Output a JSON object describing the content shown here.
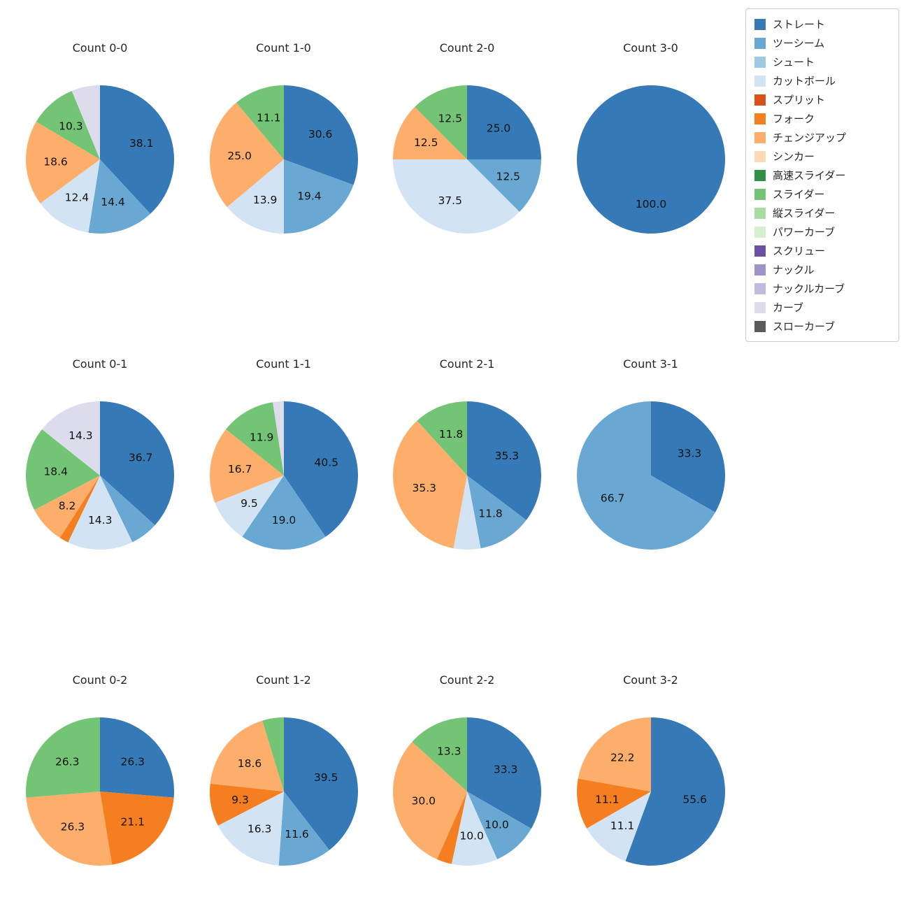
{
  "palette": {
    "ストレート": "#3579b6",
    "ツーシーム": "#68a8d2",
    "シュート": "#9ecae1",
    "カットボール": "#d2e3f3",
    "スプリット": "#d8511d",
    "フォーク": "#f57e20",
    "チェンジアップ": "#fdae6b",
    "シンカー": "#fdd9b4",
    "高速スライダー": "#2e9147",
    "スライダー": "#74c476",
    "縦スライダー": "#a8dca3",
    "パワーカーブ": "#d7efd1",
    "スクリュー": "#6a51a3",
    "ナックル": "#9e94c8",
    "ナックルカーブ": "#bdbcdc",
    "カーブ": "#dcdcec",
    "スローカーブ": "#5a5a5a"
  },
  "legend": {
    "items": [
      "ストレート",
      "ツーシーム",
      "シュート",
      "カットボール",
      "スプリット",
      "フォーク",
      "チェンジアップ",
      "シンカー",
      "高速スライダー",
      "スライダー",
      "縦スライダー",
      "パワーカーブ",
      "スクリュー",
      "ナックル",
      "ナックルカーブ",
      "カーブ",
      "スローカーブ"
    ]
  },
  "chart_data": [
    {
      "type": "pie",
      "title": "Count 0-0",
      "slices": [
        {
          "label": "ストレート",
          "value": 38.1,
          "labeled": true
        },
        {
          "label": "ツーシーム",
          "value": 14.4,
          "labeled": true
        },
        {
          "label": "カットボール",
          "value": 12.4,
          "labeled": true
        },
        {
          "label": "チェンジアップ",
          "value": 18.6,
          "labeled": true
        },
        {
          "label": "スライダー",
          "value": 10.3,
          "labeled": true
        },
        {
          "label": "カーブ",
          "value": 6.2,
          "labeled": false
        }
      ]
    },
    {
      "type": "pie",
      "title": "Count 1-0",
      "slices": [
        {
          "label": "ストレート",
          "value": 30.6,
          "labeled": true
        },
        {
          "label": "ツーシーム",
          "value": 19.4,
          "labeled": true
        },
        {
          "label": "カットボール",
          "value": 13.9,
          "labeled": true
        },
        {
          "label": "チェンジアップ",
          "value": 25.0,
          "labeled": true
        },
        {
          "label": "スライダー",
          "value": 11.1,
          "labeled": true
        }
      ]
    },
    {
      "type": "pie",
      "title": "Count 2-0",
      "slices": [
        {
          "label": "ストレート",
          "value": 25.0,
          "labeled": true
        },
        {
          "label": "ツーシーム",
          "value": 12.5,
          "labeled": true
        },
        {
          "label": "カットボール",
          "value": 37.5,
          "labeled": true
        },
        {
          "label": "チェンジアップ",
          "value": 12.5,
          "labeled": true
        },
        {
          "label": "スライダー",
          "value": 12.5,
          "labeled": true
        }
      ]
    },
    {
      "type": "pie",
      "title": "Count 3-0",
      "slices": [
        {
          "label": "ストレート",
          "value": 100.0,
          "labeled": true
        }
      ]
    },
    {
      "type": "pie",
      "title": "Count 0-1",
      "slices": [
        {
          "label": "ストレート",
          "value": 36.7,
          "labeled": true
        },
        {
          "label": "ツーシーム",
          "value": 6.1,
          "labeled": false
        },
        {
          "label": "カットボール",
          "value": 14.3,
          "labeled": true
        },
        {
          "label": "フォーク",
          "value": 2.0,
          "labeled": false
        },
        {
          "label": "チェンジアップ",
          "value": 8.2,
          "labeled": true
        },
        {
          "label": "スライダー",
          "value": 18.4,
          "labeled": true
        },
        {
          "label": "カーブ",
          "value": 14.3,
          "labeled": true
        }
      ]
    },
    {
      "type": "pie",
      "title": "Count 1-1",
      "slices": [
        {
          "label": "ストレート",
          "value": 40.5,
          "labeled": true
        },
        {
          "label": "ツーシーム",
          "value": 19.0,
          "labeled": true
        },
        {
          "label": "カットボール",
          "value": 9.5,
          "labeled": true
        },
        {
          "label": "チェンジアップ",
          "value": 16.7,
          "labeled": true
        },
        {
          "label": "スライダー",
          "value": 11.9,
          "labeled": true
        },
        {
          "label": "カーブ",
          "value": 2.4,
          "labeled": false
        }
      ]
    },
    {
      "type": "pie",
      "title": "Count 2-1",
      "slices": [
        {
          "label": "ストレート",
          "value": 35.3,
          "labeled": true
        },
        {
          "label": "ツーシーム",
          "value": 11.8,
          "labeled": true
        },
        {
          "label": "カットボール",
          "value": 5.9,
          "labeled": false
        },
        {
          "label": "チェンジアップ",
          "value": 35.3,
          "labeled": true
        },
        {
          "label": "スライダー",
          "value": 11.8,
          "labeled": true
        }
      ]
    },
    {
      "type": "pie",
      "title": "Count 3-1",
      "slices": [
        {
          "label": "ストレート",
          "value": 33.3,
          "labeled": true
        },
        {
          "label": "ツーシーム",
          "value": 66.7,
          "labeled": true
        }
      ]
    },
    {
      "type": "pie",
      "title": "Count 0-2",
      "slices": [
        {
          "label": "ストレート",
          "value": 26.3,
          "labeled": true
        },
        {
          "label": "フォーク",
          "value": 21.1,
          "labeled": true
        },
        {
          "label": "チェンジアップ",
          "value": 26.3,
          "labeled": true
        },
        {
          "label": "スライダー",
          "value": 26.3,
          "labeled": true
        }
      ]
    },
    {
      "type": "pie",
      "title": "Count 1-2",
      "slices": [
        {
          "label": "ストレート",
          "value": 39.5,
          "labeled": true
        },
        {
          "label": "ツーシーム",
          "value": 11.6,
          "labeled": true
        },
        {
          "label": "カットボール",
          "value": 16.3,
          "labeled": true
        },
        {
          "label": "フォーク",
          "value": 9.3,
          "labeled": true
        },
        {
          "label": "チェンジアップ",
          "value": 18.6,
          "labeled": true
        },
        {
          "label": "スライダー",
          "value": 4.7,
          "labeled": false
        }
      ]
    },
    {
      "type": "pie",
      "title": "Count 2-2",
      "slices": [
        {
          "label": "ストレート",
          "value": 33.3,
          "labeled": true
        },
        {
          "label": "ツーシーム",
          "value": 10.0,
          "labeled": true
        },
        {
          "label": "カットボール",
          "value": 10.0,
          "labeled": true
        },
        {
          "label": "フォーク",
          "value": 3.3,
          "labeled": false
        },
        {
          "label": "チェンジアップ",
          "value": 30.0,
          "labeled": true
        },
        {
          "label": "スライダー",
          "value": 13.3,
          "labeled": true
        }
      ]
    },
    {
      "type": "pie",
      "title": "Count 3-2",
      "slices": [
        {
          "label": "ストレート",
          "value": 55.6,
          "labeled": true
        },
        {
          "label": "カットボール",
          "value": 11.1,
          "labeled": true
        },
        {
          "label": "フォーク",
          "value": 11.1,
          "labeled": true
        },
        {
          "label": "チェンジアップ",
          "value": 22.2,
          "labeled": true
        }
      ]
    }
  ]
}
